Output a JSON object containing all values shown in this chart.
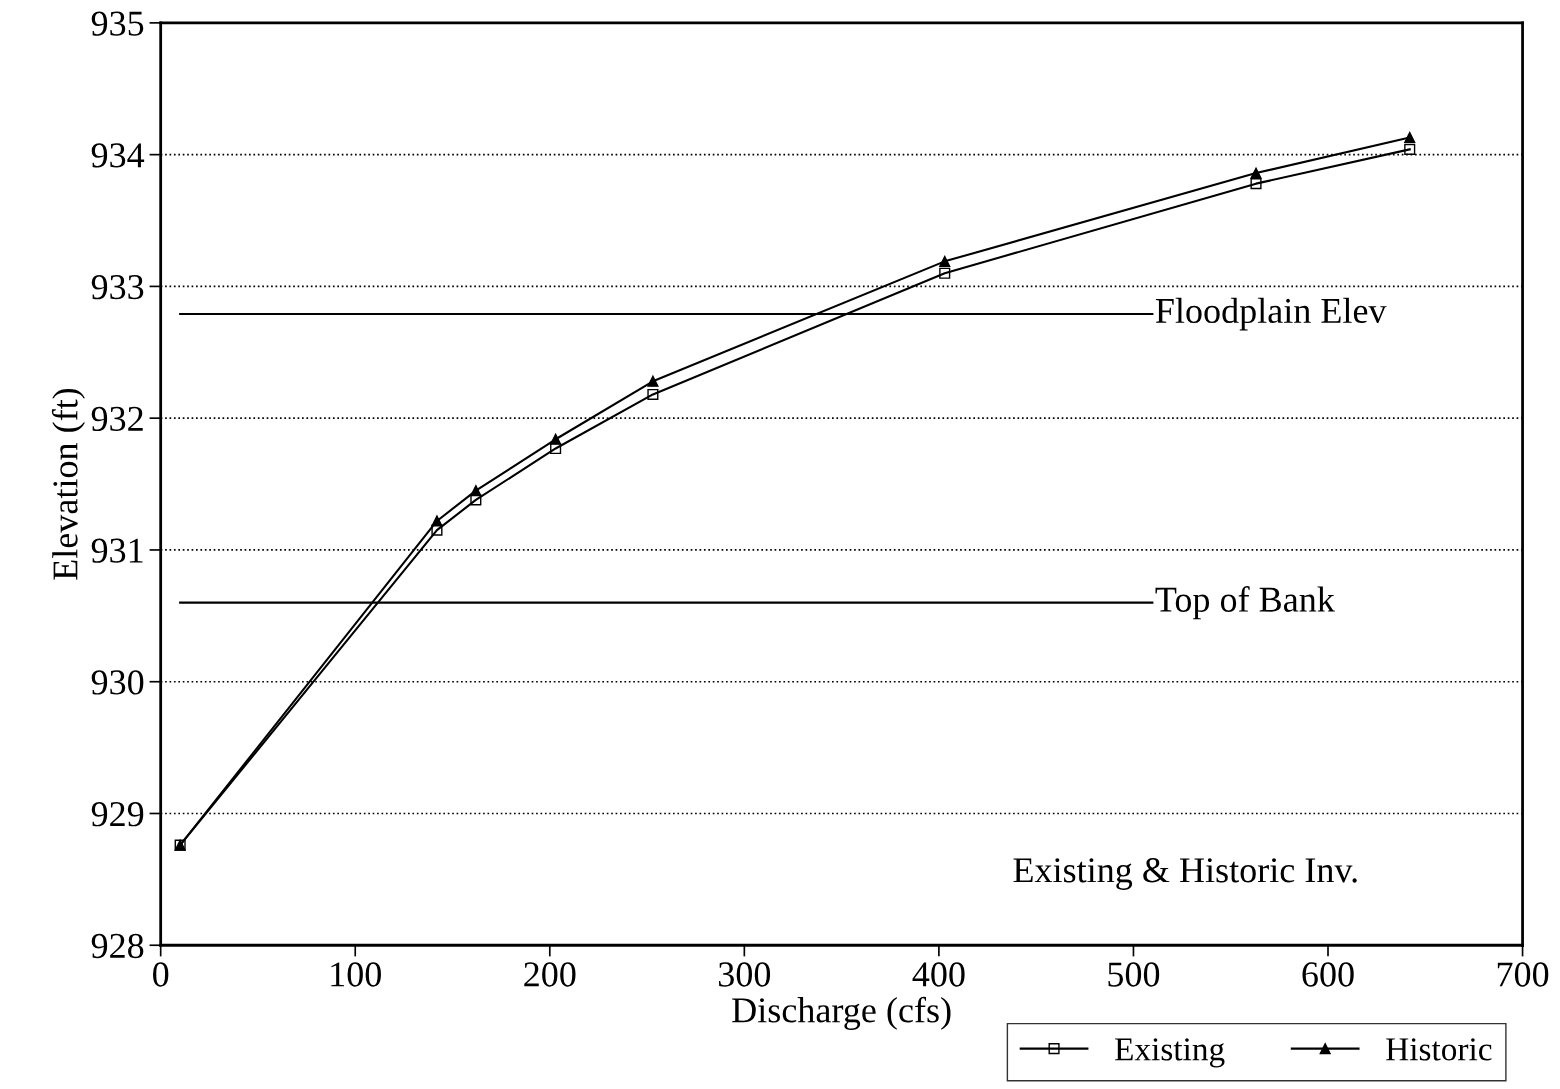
{
  "chart_data": {
    "type": "line",
    "xlabel": "Discharge (cfs)",
    "ylabel": "Elevation (ft)",
    "x": [
      10,
      142,
      162,
      203,
      253,
      403,
      563,
      642
    ],
    "series": [
      {
        "name": "Existing",
        "color": "#000000",
        "marker": "square",
        "values": [
          928.76,
          931.15,
          931.38,
          931.77,
          932.18,
          933.1,
          933.78,
          934.04
        ]
      },
      {
        "name": "Historic",
        "color": "#000000",
        "marker": "triangle",
        "values": [
          928.76,
          931.22,
          931.45,
          931.84,
          932.28,
          933.19,
          933.86,
          934.13
        ]
      }
    ],
    "xlim": [
      0,
      700
    ],
    "xticks": [
      0,
      100,
      200,
      300,
      400,
      500,
      600,
      700
    ],
    "ylim": [
      928,
      935
    ],
    "yticks": [
      928,
      929,
      930,
      931,
      932,
      933,
      934,
      935
    ],
    "ref_lines": [
      {
        "axis": "y",
        "value": 932.79,
        "label": "Floodplain Elev",
        "color": "#000000",
        "line_style": "solid"
      },
      {
        "axis": "y",
        "value": 930.6,
        "label": "Top of Bank",
        "color": "#000000",
        "line_style": "solid"
      }
    ],
    "annotations": [
      "Existing & Historic Inv."
    ],
    "grid": "y",
    "legend": "bottom right",
    "line_style": "solid"
  }
}
